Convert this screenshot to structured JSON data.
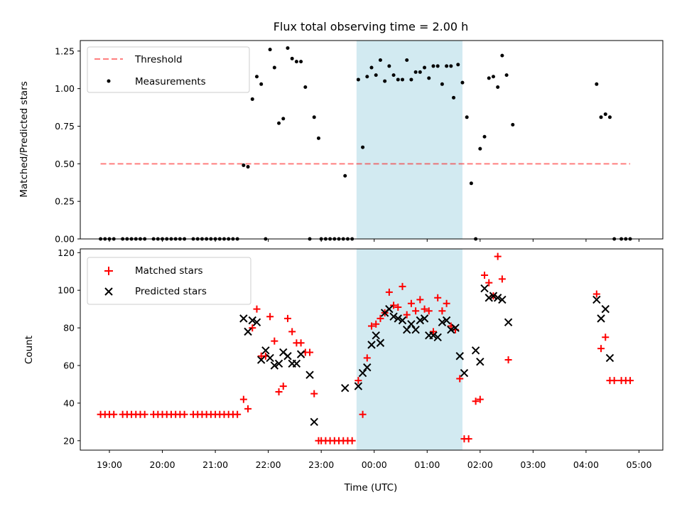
{
  "chart_data": [
    {
      "type": "scatter",
      "title": "Flux total observing time = 2.00 h",
      "xlabel": "",
      "ylabel": "Matched/Predicted stars",
      "xlim": [
        "18:27",
        "05:27"
      ],
      "ylim": [
        0,
        1.32
      ],
      "yticks": [
        0.0,
        0.25,
        0.5,
        0.75,
        1.0,
        1.25
      ],
      "ytick_labels": [
        "0.00",
        "0.25",
        "0.50",
        "0.75",
        "1.00",
        "1.25"
      ],
      "shaded_span": [
        "23:40",
        "01:40"
      ],
      "shaded_color": "#add8e6",
      "legend_position": "upper left",
      "series": [
        {
          "name": "Threshold",
          "type": "line",
          "style": "dashed",
          "color": "#ff0000",
          "points": [
            [
              "18:50",
              0.5
            ],
            [
              "04:50",
              0.5
            ]
          ]
        },
        {
          "name": "Measurements",
          "type": "scatter",
          "marker": "dot",
          "color": "#000000",
          "points": [
            [
              "18:50",
              0.0
            ],
            [
              "18:55",
              0.0
            ],
            [
              "19:00",
              0.0
            ],
            [
              "19:05",
              0.0
            ],
            [
              "19:15",
              0.0
            ],
            [
              "19:20",
              0.0
            ],
            [
              "19:25",
              0.0
            ],
            [
              "19:30",
              0.0
            ],
            [
              "19:35",
              0.0
            ],
            [
              "19:40",
              0.0
            ],
            [
              "19:50",
              0.0
            ],
            [
              "19:55",
              0.0
            ],
            [
              "20:00",
              0.0
            ],
            [
              "20:05",
              0.0
            ],
            [
              "20:10",
              0.0
            ],
            [
              "20:15",
              0.0
            ],
            [
              "20:20",
              0.0
            ],
            [
              "20:25",
              0.0
            ],
            [
              "20:35",
              0.0
            ],
            [
              "20:40",
              0.0
            ],
            [
              "20:45",
              0.0
            ],
            [
              "20:50",
              0.0
            ],
            [
              "20:55",
              0.0
            ],
            [
              "21:00",
              0.0
            ],
            [
              "21:05",
              0.0
            ],
            [
              "21:10",
              0.0
            ],
            [
              "21:15",
              0.0
            ],
            [
              "21:20",
              0.0
            ],
            [
              "21:25",
              0.0
            ],
            [
              "21:32",
              0.49
            ],
            [
              "21:37",
              0.48
            ],
            [
              "21:42",
              0.93
            ],
            [
              "21:47",
              1.08
            ],
            [
              "21:52",
              1.03
            ],
            [
              "21:57",
              0.0
            ],
            [
              "22:02",
              1.26
            ],
            [
              "22:07",
              1.14
            ],
            [
              "22:12",
              0.77
            ],
            [
              "22:17",
              0.8
            ],
            [
              "22:22",
              1.27
            ],
            [
              "22:27",
              1.2
            ],
            [
              "22:32",
              1.18
            ],
            [
              "22:37",
              1.18
            ],
            [
              "22:42",
              1.01
            ],
            [
              "22:47",
              0.0
            ],
            [
              "22:52",
              0.81
            ],
            [
              "22:57",
              0.67
            ],
            [
              "23:00",
              0.0
            ],
            [
              "23:05",
              0.0
            ],
            [
              "23:10",
              0.0
            ],
            [
              "23:15",
              0.0
            ],
            [
              "23:20",
              0.0
            ],
            [
              "23:25",
              0.0
            ],
            [
              "23:27",
              0.42
            ],
            [
              "23:30",
              0.0
            ],
            [
              "23:35",
              0.0
            ],
            [
              "23:42",
              1.06
            ],
            [
              "23:47",
              0.61
            ],
            [
              "23:52",
              1.08
            ],
            [
              "23:57",
              1.14
            ],
            [
              "00:02",
              1.09
            ],
            [
              "00:07",
              1.19
            ],
            [
              "00:12",
              1.05
            ],
            [
              "00:17",
              1.15
            ],
            [
              "00:22",
              1.09
            ],
            [
              "00:27",
              1.06
            ],
            [
              "00:32",
              1.06
            ],
            [
              "00:37",
              1.19
            ],
            [
              "00:42",
              1.06
            ],
            [
              "00:47",
              1.11
            ],
            [
              "00:52",
              1.11
            ],
            [
              "00:57",
              1.14
            ],
            [
              "01:02",
              1.07
            ],
            [
              "01:07",
              1.15
            ],
            [
              "01:12",
              1.15
            ],
            [
              "01:17",
              1.03
            ],
            [
              "01:22",
              1.15
            ],
            [
              "01:27",
              1.15
            ],
            [
              "01:30",
              0.94
            ],
            [
              "01:35",
              1.16
            ],
            [
              "01:40",
              1.04
            ],
            [
              "01:45",
              0.81
            ],
            [
              "01:50",
              0.37
            ],
            [
              "01:55",
              0.0
            ],
            [
              "02:00",
              0.6
            ],
            [
              "02:05",
              0.68
            ],
            [
              "02:10",
              1.07
            ],
            [
              "02:15",
              1.08
            ],
            [
              "02:20",
              1.01
            ],
            [
              "02:25",
              1.22
            ],
            [
              "02:30",
              1.09
            ],
            [
              "02:37",
              0.76
            ],
            [
              "04:12",
              1.03
            ],
            [
              "04:17",
              0.81
            ],
            [
              "04:22",
              0.83
            ],
            [
              "04:27",
              0.81
            ],
            [
              "04:32",
              0.0
            ],
            [
              "04:40",
              0.0
            ],
            [
              "04:45",
              0.0
            ],
            [
              "04:50",
              0.0
            ]
          ]
        }
      ]
    },
    {
      "type": "scatter",
      "title": "",
      "xlabel": "Time (UTC)",
      "ylabel": "Count",
      "xlim": [
        "18:27",
        "05:27"
      ],
      "ylim": [
        15,
        122
      ],
      "yticks": [
        20,
        40,
        60,
        80,
        100,
        120
      ],
      "ytick_labels": [
        "20",
        "40",
        "60",
        "80",
        "100",
        "120"
      ],
      "xtick_labels": [
        "19:00",
        "20:00",
        "21:00",
        "22:00",
        "23:00",
        "00:00",
        "01:00",
        "02:00",
        "03:00",
        "04:00",
        "05:00"
      ],
      "shaded_span": [
        "23:40",
        "01:40"
      ],
      "shaded_color": "#add8e6",
      "legend_position": "upper left",
      "series": [
        {
          "name": "Matched stars",
          "type": "scatter",
          "marker": "plus",
          "color": "#ff0000",
          "points": [
            [
              "18:50",
              34
            ],
            [
              "18:55",
              34
            ],
            [
              "19:00",
              34
            ],
            [
              "19:05",
              34
            ],
            [
              "19:15",
              34
            ],
            [
              "19:20",
              34
            ],
            [
              "19:25",
              34
            ],
            [
              "19:30",
              34
            ],
            [
              "19:35",
              34
            ],
            [
              "19:40",
              34
            ],
            [
              "19:50",
              34
            ],
            [
              "19:55",
              34
            ],
            [
              "20:00",
              34
            ],
            [
              "20:05",
              34
            ],
            [
              "20:10",
              34
            ],
            [
              "20:15",
              34
            ],
            [
              "20:20",
              34
            ],
            [
              "20:25",
              34
            ],
            [
              "20:35",
              34
            ],
            [
              "20:40",
              34
            ],
            [
              "20:45",
              34
            ],
            [
              "20:50",
              34
            ],
            [
              "20:55",
              34
            ],
            [
              "21:00",
              34
            ],
            [
              "21:05",
              34
            ],
            [
              "21:10",
              34
            ],
            [
              "21:15",
              34
            ],
            [
              "21:20",
              34
            ],
            [
              "21:25",
              34
            ],
            [
              "21:32",
              42
            ],
            [
              "21:37",
              37
            ],
            [
              "21:42",
              80
            ],
            [
              "21:47",
              90
            ],
            [
              "21:52",
              65
            ],
            [
              "21:57",
              65
            ],
            [
              "22:02",
              86
            ],
            [
              "22:07",
              73
            ],
            [
              "22:12",
              46
            ],
            [
              "22:17",
              49
            ],
            [
              "22:22",
              85
            ],
            [
              "22:27",
              78
            ],
            [
              "22:32",
              72
            ],
            [
              "22:37",
              72
            ],
            [
              "22:42",
              67
            ],
            [
              "22:47",
              67
            ],
            [
              "22:52",
              45
            ],
            [
              "22:57",
              20
            ],
            [
              "23:00",
              20
            ],
            [
              "23:05",
              20
            ],
            [
              "23:10",
              20
            ],
            [
              "23:15",
              20
            ],
            [
              "23:20",
              20
            ],
            [
              "23:25",
              20
            ],
            [
              "23:30",
              20
            ],
            [
              "23:35",
              20
            ],
            [
              "23:42",
              52
            ],
            [
              "23:47",
              34
            ],
            [
              "23:52",
              64
            ],
            [
              "23:57",
              81
            ],
            [
              "00:02",
              82
            ],
            [
              "00:07",
              85
            ],
            [
              "00:12",
              88
            ],
            [
              "00:17",
              99
            ],
            [
              "00:22",
              92
            ],
            [
              "00:27",
              91
            ],
            [
              "00:32",
              102
            ],
            [
              "00:37",
              87
            ],
            [
              "00:42",
              93
            ],
            [
              "00:47",
              89
            ],
            [
              "00:52",
              95
            ],
            [
              "00:57",
              90
            ],
            [
              "01:02",
              89
            ],
            [
              "01:07",
              78
            ],
            [
              "01:12",
              96
            ],
            [
              "01:17",
              89
            ],
            [
              "01:22",
              93
            ],
            [
              "01:27",
              81
            ],
            [
              "01:32",
              79
            ],
            [
              "01:37",
              53
            ],
            [
              "01:42",
              21
            ],
            [
              "01:47",
              21
            ],
            [
              "01:55",
              41
            ],
            [
              "02:00",
              42
            ],
            [
              "02:05",
              108
            ],
            [
              "02:10",
              104
            ],
            [
              "02:15",
              97
            ],
            [
              "02:20",
              118
            ],
            [
              "02:25",
              106
            ],
            [
              "02:32",
              63
            ],
            [
              "04:12",
              98
            ],
            [
              "04:17",
              69
            ],
            [
              "04:22",
              75
            ],
            [
              "04:27",
              52
            ],
            [
              "04:32",
              52
            ],
            [
              "04:40",
              52
            ],
            [
              "04:45",
              52
            ],
            [
              "04:50",
              52
            ]
          ]
        },
        {
          "name": "Predicted stars",
          "type": "scatter",
          "marker": "x",
          "color": "#000000",
          "points": [
            [
              "21:32",
              85
            ],
            [
              "21:37",
              78
            ],
            [
              "21:42",
              84
            ],
            [
              "21:47",
              83
            ],
            [
              "21:52",
              63
            ],
            [
              "21:57",
              68
            ],
            [
              "22:02",
              64
            ],
            [
              "22:07",
              60
            ],
            [
              "22:12",
              61
            ],
            [
              "22:17",
              67
            ],
            [
              "22:22",
              65
            ],
            [
              "22:27",
              61
            ],
            [
              "22:32",
              61
            ],
            [
              "22:37",
              66
            ],
            [
              "22:47",
              55
            ],
            [
              "22:52",
              30
            ],
            [
              "23:27",
              48
            ],
            [
              "23:42",
              49
            ],
            [
              "23:47",
              56
            ],
            [
              "23:52",
              59
            ],
            [
              "23:57",
              71
            ],
            [
              "00:02",
              76
            ],
            [
              "00:07",
              72
            ],
            [
              "00:12",
              88
            ],
            [
              "00:17",
              90
            ],
            [
              "00:22",
              86
            ],
            [
              "00:27",
              85
            ],
            [
              "00:32",
              84
            ],
            [
              "00:37",
              79
            ],
            [
              "00:42",
              82
            ],
            [
              "00:47",
              79
            ],
            [
              "00:52",
              84
            ],
            [
              "00:57",
              85
            ],
            [
              "01:02",
              76
            ],
            [
              "01:07",
              76
            ],
            [
              "01:12",
              75
            ],
            [
              "01:17",
              83
            ],
            [
              "01:22",
              84
            ],
            [
              "01:27",
              79
            ],
            [
              "01:32",
              80
            ],
            [
              "01:37",
              65
            ],
            [
              "01:42",
              56
            ],
            [
              "01:55",
              68
            ],
            [
              "02:00",
              62
            ],
            [
              "02:05",
              101
            ],
            [
              "02:10",
              96
            ],
            [
              "02:15",
              97
            ],
            [
              "02:20",
              96
            ],
            [
              "02:25",
              95
            ],
            [
              "02:32",
              83
            ],
            [
              "04:12",
              95
            ],
            [
              "04:17",
              85
            ],
            [
              "04:22",
              90
            ],
            [
              "04:27",
              64
            ]
          ]
        }
      ]
    }
  ]
}
